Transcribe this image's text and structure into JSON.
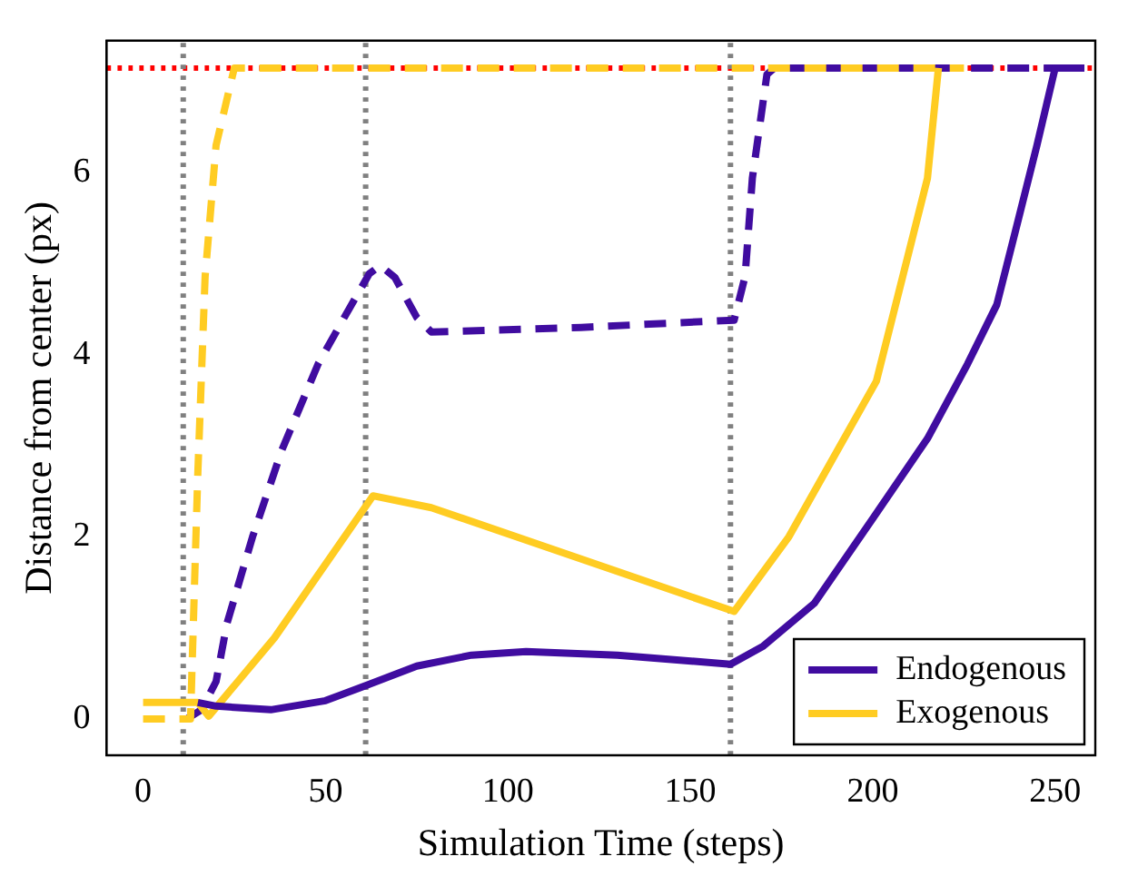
{
  "chart_data": {
    "type": "line",
    "xlabel": "Simulation Time (steps)",
    "ylabel": "Distance from center (px)",
    "xlim": [
      -10,
      261
    ],
    "ylim": [
      -0.4,
      7.45
    ],
    "xticks": [
      0,
      50,
      100,
      150,
      200,
      250
    ],
    "yticks": [
      0,
      2,
      4,
      6
    ],
    "grid": false,
    "legend": "bottom right",
    "series": [
      {
        "name": "Endogenous",
        "color": "#400ca0",
        "line_style": "solid",
        "x": [
          15,
          20,
          35,
          50,
          62,
          75,
          90,
          105,
          130,
          161,
          170,
          184,
          200,
          215,
          226,
          234,
          240,
          245,
          250,
          258
        ],
        "values": [
          0.18,
          0.14,
          0.1,
          0.2,
          0.38,
          0.58,
          0.7,
          0.74,
          0.7,
          0.6,
          0.8,
          1.27,
          2.2,
          3.08,
          3.9,
          4.55,
          5.5,
          6.3,
          7.15,
          7.15
        ]
      },
      {
        "name": "Exogenous",
        "color": "#ffcc22",
        "line_style": "solid",
        "x": [
          0,
          15,
          18,
          36,
          63,
          79,
          162,
          177,
          201,
          215,
          218
        ],
        "values": [
          0.18,
          0.18,
          0.03,
          0.89,
          2.45,
          2.32,
          1.18,
          2.0,
          3.71,
          5.94,
          7.15
        ]
      },
      {
        "color": "#ffcc22",
        "line_style": "dashed",
        "x": [
          0,
          13,
          15,
          17,
          20,
          25,
          225
        ],
        "values": [
          0,
          0,
          2.7,
          4.86,
          6.3,
          7.15,
          7.15
        ]
      },
      {
        "color": "#400ca0",
        "line_style": "dashed",
        "x": [
          12,
          16,
          20,
          23,
          30,
          38,
          48,
          55,
          62,
          65,
          69,
          75,
          79,
          120,
          162,
          165,
          167,
          171,
          173,
          258
        ],
        "values": [
          0,
          0.1,
          0.41,
          1.05,
          2.0,
          2.95,
          3.9,
          4.4,
          4.89,
          4.98,
          4.85,
          4.41,
          4.25,
          4.3,
          4.38,
          4.86,
          5.94,
          7.08,
          7.15,
          7.15
        ]
      }
    ],
    "ref_lines": [
      {
        "axis": "y",
        "value": 7.15,
        "color": "#ff0000",
        "line_style": "dotted"
      },
      {
        "axis": "x",
        "value": 11,
        "color": "#808080",
        "line_style": "dotted"
      },
      {
        "axis": "x",
        "value": 61,
        "color": "#808080",
        "line_style": "dotted"
      },
      {
        "axis": "x",
        "value": 161,
        "color": "#808080",
        "line_style": "dotted"
      }
    ]
  }
}
